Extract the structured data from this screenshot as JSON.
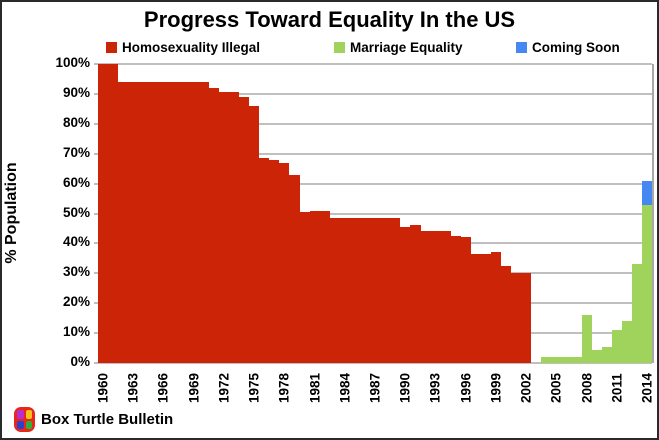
{
  "title": "Progress Toward Equality In the US",
  "legend": [
    {
      "label": "Homosexuality Illegal",
      "color": "#cc2406"
    },
    {
      "label": "Marriage Equality",
      "color": "#9fd35c"
    },
    {
      "label": "Coming Soon",
      "color": "#4688f1"
    }
  ],
  "footer": {
    "brand": "Box Turtle Bulletin"
  },
  "chart_data": {
    "type": "bar",
    "stacked": true,
    "title": "Progress Toward Equality In the US",
    "ylabel": "% Population",
    "xlabel": "",
    "ylim": [
      0,
      100
    ],
    "y_tick_labels": [
      "0%",
      "10%",
      "20%",
      "30%",
      "40%",
      "50%",
      "60%",
      "70%",
      "80%",
      "90%",
      "100%"
    ],
    "x_tick_labels": [
      "1960",
      "1963",
      "1966",
      "1969",
      "1972",
      "1975",
      "1978",
      "1981",
      "1984",
      "1987",
      "1990",
      "1993",
      "1996",
      "1999",
      "2002",
      "2005",
      "2008",
      "2011",
      "2014"
    ],
    "grid": true,
    "legend_position": "top",
    "categories": [
      1960,
      1961,
      1962,
      1963,
      1964,
      1965,
      1966,
      1967,
      1968,
      1969,
      1970,
      1971,
      1972,
      1973,
      1974,
      1975,
      1976,
      1977,
      1978,
      1979,
      1980,
      1981,
      1982,
      1983,
      1984,
      1985,
      1986,
      1987,
      1988,
      1989,
      1990,
      1991,
      1992,
      1993,
      1994,
      1995,
      1996,
      1997,
      1998,
      1999,
      2000,
      2001,
      2002,
      2003,
      2004,
      2005,
      2006,
      2007,
      2008,
      2009,
      2010,
      2011,
      2012,
      2013,
      2014
    ],
    "series": [
      {
        "name": "Homosexuality Illegal",
        "color": "#cc2406",
        "values": [
          100,
          100,
          94,
          94,
          94,
          94,
          94,
          94,
          94,
          94,
          94,
          92,
          90.5,
          90.5,
          89,
          86,
          68.5,
          68,
          67,
          63,
          50.5,
          51,
          51,
          48.5,
          48.5,
          48.5,
          48.5,
          48.5,
          48.5,
          48.5,
          45.5,
          46,
          44,
          44,
          44,
          42.5,
          42,
          36.5,
          36.5,
          37,
          32.5,
          30,
          30,
          0,
          0,
          0,
          0,
          0,
          0,
          0,
          0,
          0,
          0,
          0,
          0
        ]
      },
      {
        "name": "Marriage Equality",
        "color": "#9fd35c",
        "values": [
          0,
          0,
          0,
          0,
          0,
          0,
          0,
          0,
          0,
          0,
          0,
          0,
          0,
          0,
          0,
          0,
          0,
          0,
          0,
          0,
          0,
          0,
          0,
          0,
          0,
          0,
          0,
          0,
          0,
          0,
          0,
          0,
          0,
          0,
          0,
          0,
          0,
          0,
          0,
          0,
          0,
          0,
          0,
          0,
          2,
          2,
          2,
          2,
          16,
          4.5,
          5.5,
          11,
          14,
          33,
          53
        ]
      },
      {
        "name": "Coming Soon",
        "color": "#4688f1",
        "values": [
          0,
          0,
          0,
          0,
          0,
          0,
          0,
          0,
          0,
          0,
          0,
          0,
          0,
          0,
          0,
          0,
          0,
          0,
          0,
          0,
          0,
          0,
          0,
          0,
          0,
          0,
          0,
          0,
          0,
          0,
          0,
          0,
          0,
          0,
          0,
          0,
          0,
          0,
          0,
          0,
          0,
          0,
          0,
          0,
          0,
          0,
          0,
          0,
          0,
          0,
          0,
          0,
          0,
          0,
          8
        ]
      }
    ]
  },
  "colors": {
    "gridline": "#bfbfbf",
    "text": "#000000"
  }
}
